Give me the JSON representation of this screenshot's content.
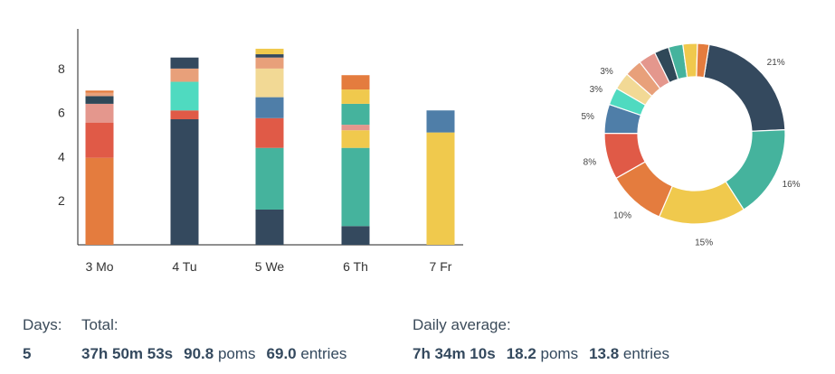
{
  "chart_data": [
    {
      "type": "bar",
      "stacked": true,
      "categories": [
        "3 Mo",
        "4 Tu",
        "5 We",
        "6 Th",
        "7 Fr"
      ],
      "ylim": [
        0,
        9.8
      ],
      "yticks": [
        2,
        4,
        6,
        8
      ],
      "segments": [
        [
          {
            "v": 3.95,
            "c": "#e47c3e"
          },
          {
            "v": 1.6,
            "c": "#e05a47"
          },
          {
            "v": 0.85,
            "c": "#e4978d"
          },
          {
            "v": 0.35,
            "c": "#2f4858"
          },
          {
            "v": 0.15,
            "c": "#e8a07a"
          },
          {
            "v": 0.1,
            "c": "#e47c3e"
          }
        ],
        [
          {
            "v": 5.7,
            "c": "#34495e"
          },
          {
            "v": 0.4,
            "c": "#e05a47"
          },
          {
            "v": 1.3,
            "c": "#4fdac0"
          },
          {
            "v": 0.6,
            "c": "#e8a07a"
          },
          {
            "v": 0.5,
            "c": "#34495e"
          }
        ],
        [
          {
            "v": 1.6,
            "c": "#34495e"
          },
          {
            "v": 2.8,
            "c": "#45b39d"
          },
          {
            "v": 1.35,
            "c": "#e05a47"
          },
          {
            "v": 0.95,
            "c": "#4f7ea8"
          },
          {
            "v": 1.3,
            "c": "#f2d995"
          },
          {
            "v": 0.5,
            "c": "#e8a07a"
          },
          {
            "v": 0.15,
            "c": "#34495e"
          },
          {
            "v": 0.25,
            "c": "#f0c94d"
          }
        ],
        [
          {
            "v": 0.85,
            "c": "#34495e"
          },
          {
            "v": 3.55,
            "c": "#45b39d"
          },
          {
            "v": 0.8,
            "c": "#f0c94d"
          },
          {
            "v": 0.25,
            "c": "#e4978d"
          },
          {
            "v": 0.95,
            "c": "#45b39d"
          },
          {
            "v": 0.65,
            "c": "#f0c94d"
          },
          {
            "v": 0.65,
            "c": "#e47c3e"
          }
        ],
        [
          {
            "v": 5.1,
            "c": "#f0c94d"
          },
          {
            "v": 1.0,
            "c": "#4f7ea8"
          }
        ]
      ]
    },
    {
      "type": "pie",
      "donut": true,
      "slices": [
        {
          "value": 21,
          "label": "21%",
          "color": "#34495e"
        },
        {
          "value": 16,
          "label": "16%",
          "color": "#45b39d"
        },
        {
          "value": 15,
          "label": "15%",
          "color": "#f0c94d"
        },
        {
          "value": 10,
          "label": "10%",
          "color": "#e47c3e"
        },
        {
          "value": 8,
          "label": "8%",
          "color": "#e05a47"
        },
        {
          "value": 5,
          "label": "5%",
          "color": "#4f7ea8"
        },
        {
          "value": 3,
          "label": "3%",
          "color": "#4fdac0"
        },
        {
          "value": 3,
          "label": "3%",
          "color": "#f2d995"
        },
        {
          "value": 3,
          "label": "",
          "color": "#e8a07a"
        },
        {
          "value": 3,
          "label": "",
          "color": "#e4978d"
        },
        {
          "value": 2.5,
          "label": "",
          "color": "#2f4858"
        },
        {
          "value": 2.5,
          "label": "",
          "color": "#45b39d"
        },
        {
          "value": 2.5,
          "label": "",
          "color": "#f0c94d"
        },
        {
          "value": 2,
          "label": "",
          "color": "#e47c3e"
        }
      ]
    }
  ],
  "stats": {
    "days_label": "Days:",
    "days_value": "5",
    "total_label": "Total:",
    "total_time": "37h 50m 53s",
    "total_poms_value": "90.8",
    "total_poms_unit": "poms",
    "total_entries_value": "69.0",
    "total_entries_unit": "entries",
    "avg_label": "Daily average:",
    "avg_time": "7h 34m 10s",
    "avg_poms_value": "18.2",
    "avg_poms_unit": "poms",
    "avg_entries_value": "13.8",
    "avg_entries_unit": "entries"
  }
}
